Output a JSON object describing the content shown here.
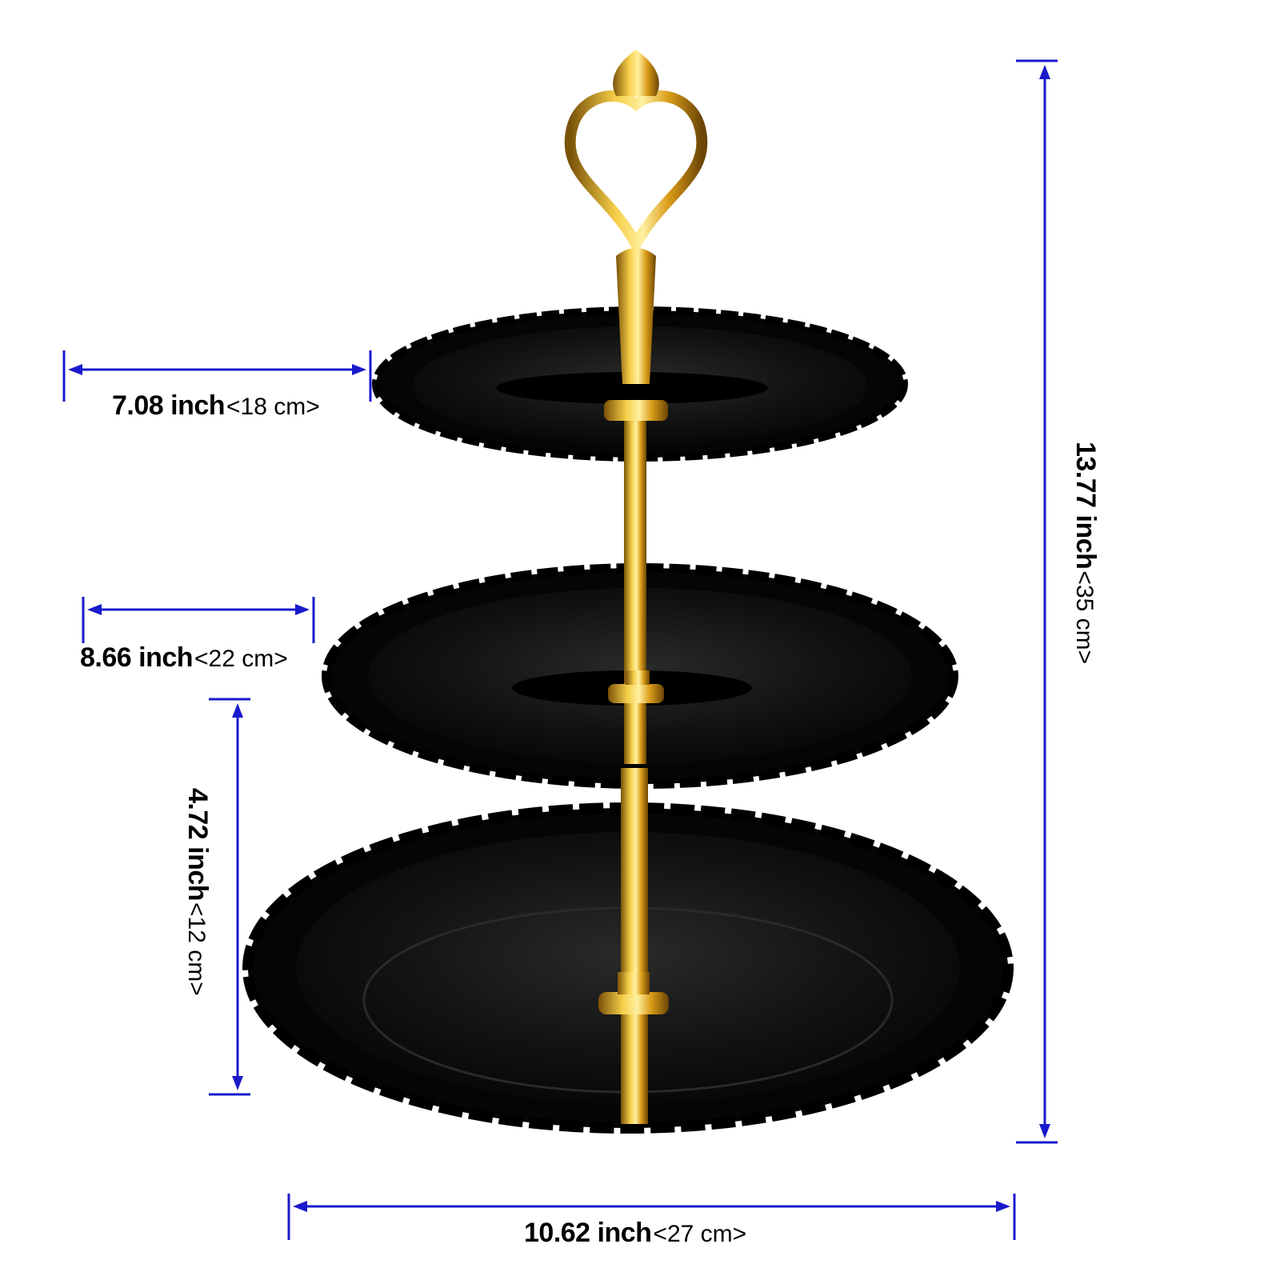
{
  "dimensions": {
    "top_tier": {
      "inch": "7.08 inch",
      "cm": "<18 cm>"
    },
    "middle_tier": {
      "inch": "8.66 inch",
      "cm": "<22 cm>"
    },
    "bottom_tier": {
      "inch": "10.62 inch",
      "cm": "<27 cm>"
    },
    "tier_gap": {
      "inch": "4.72 inch",
      "cm": "<12 cm>"
    },
    "total_height": {
      "inch": "13.77 inch",
      "cm": "<35 cm>"
    }
  },
  "colors": {
    "dimension_line": "#1a1acc",
    "plate": "#0b0b0b",
    "gold": "#d9a21f"
  }
}
